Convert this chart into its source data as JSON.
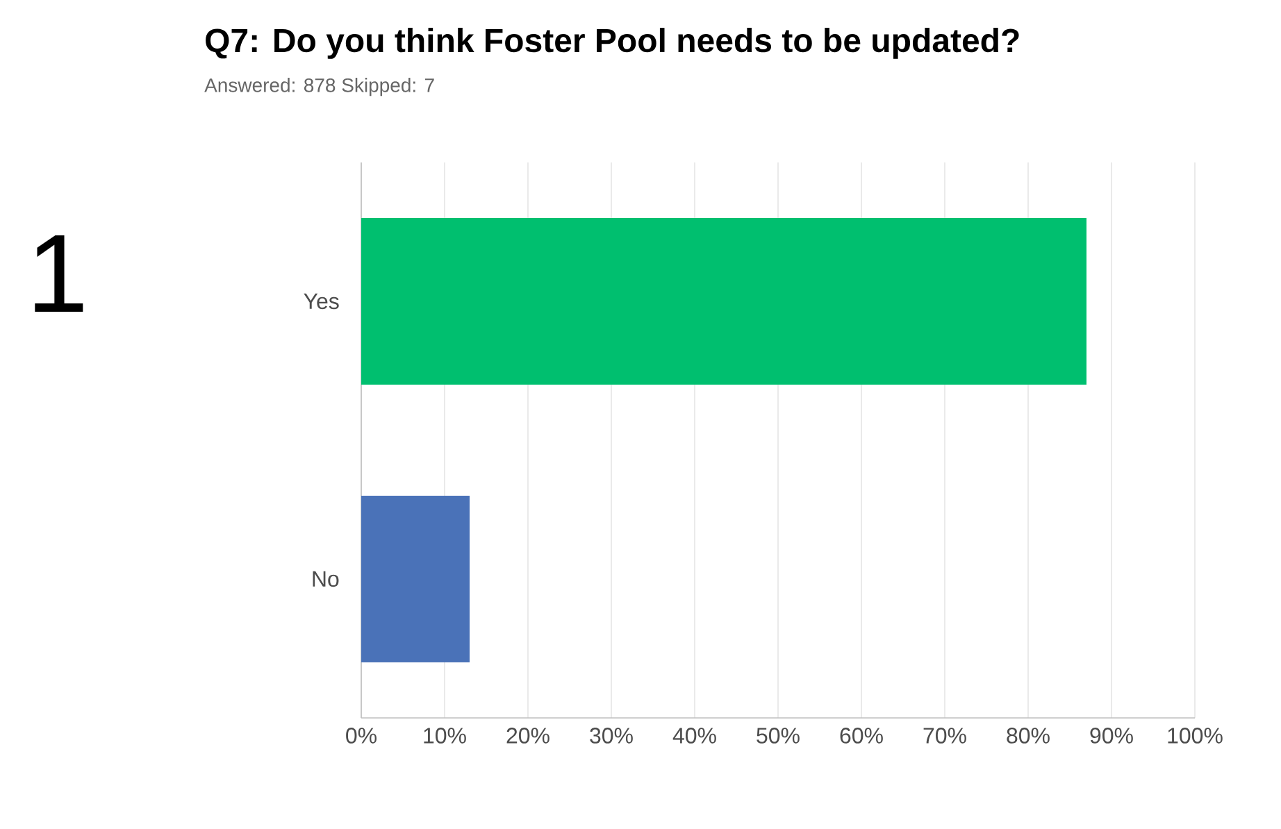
{
  "chart_data": {
    "type": "bar",
    "orientation": "horizontal",
    "title": "Q7: Do you think Foster Pool needs to be updated?",
    "subtitle": "Answered: 878    Skipped: 7",
    "annotations": [
      "1"
    ],
    "categories": [
      "Yes",
      "No"
    ],
    "values": [
      87,
      13
    ],
    "colors": [
      "#00bf6f",
      "#4a72b8"
    ],
    "xlim": [
      0,
      100
    ],
    "xticks": [
      {
        "value": 0,
        "label": "0%"
      },
      {
        "value": 10,
        "label": "10%"
      },
      {
        "value": 20,
        "label": "20%"
      },
      {
        "value": 30,
        "label": "30%"
      },
      {
        "value": 40,
        "label": "40%"
      },
      {
        "value": 50,
        "label": "50%"
      },
      {
        "value": 60,
        "label": "60%"
      },
      {
        "value": 70,
        "label": "70%"
      },
      {
        "value": 80,
        "label": "80%"
      },
      {
        "value": 90,
        "label": "90%"
      },
      {
        "value": 100,
        "label": "100%"
      }
    ],
    "grid": "x"
  }
}
